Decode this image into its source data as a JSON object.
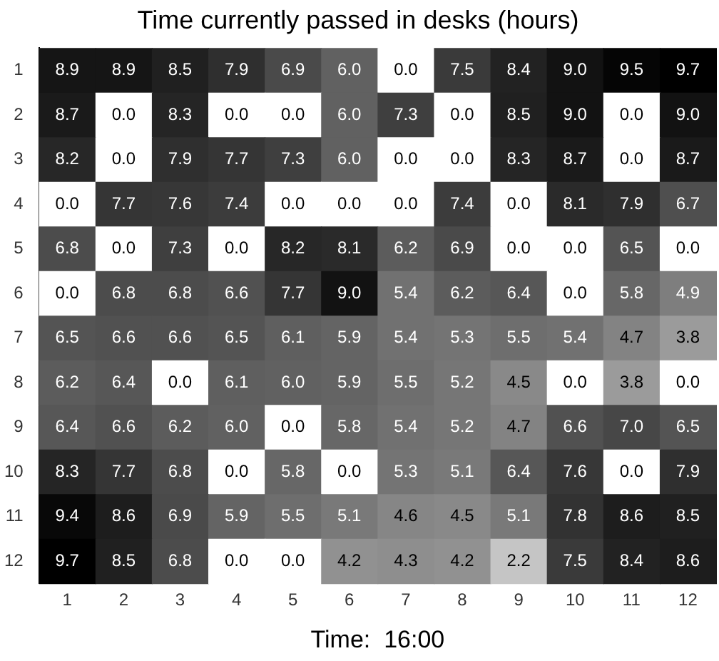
{
  "chart_data": {
    "type": "heatmap",
    "title": "Time currently passed in desks (hours)",
    "xlabel": "Time:  16:00",
    "categories": [
      "1",
      "2",
      "3",
      "4",
      "5",
      "6",
      "7",
      "8",
      "9",
      "10",
      "11",
      "12"
    ],
    "y_categories": [
      "1",
      "2",
      "3",
      "4",
      "5",
      "6",
      "7",
      "8",
      "9",
      "10",
      "11",
      "12"
    ],
    "cells": [
      [
        8.9,
        8.9,
        8.5,
        7.9,
        6.9,
        6.0,
        0.0,
        7.5,
        8.4,
        9.0,
        9.5,
        9.7
      ],
      [
        8.7,
        0.0,
        8.3,
        0.0,
        0.0,
        6.0,
        7.3,
        0.0,
        8.5,
        9.0,
        0.0,
        9.0
      ],
      [
        8.2,
        0.0,
        7.9,
        7.7,
        7.3,
        6.0,
        0.0,
        0.0,
        8.3,
        8.7,
        0.0,
        8.7
      ],
      [
        0.0,
        7.7,
        7.6,
        7.4,
        0.0,
        0.0,
        0.0,
        7.4,
        0.0,
        8.1,
        7.9,
        6.7
      ],
      [
        6.8,
        0.0,
        7.3,
        0.0,
        8.2,
        8.1,
        6.2,
        6.9,
        0.0,
        0.0,
        6.5,
        0.0
      ],
      [
        0.0,
        6.8,
        6.8,
        6.6,
        7.7,
        9.0,
        5.4,
        6.2,
        6.4,
        0.0,
        5.8,
        4.9
      ],
      [
        6.5,
        6.6,
        6.6,
        6.5,
        6.1,
        5.9,
        5.4,
        5.3,
        5.5,
        5.4,
        4.7,
        3.8
      ],
      [
        6.2,
        6.4,
        0.0,
        6.1,
        6.0,
        5.9,
        5.5,
        5.2,
        4.5,
        0.0,
        3.8,
        0.0
      ],
      [
        6.4,
        6.6,
        6.2,
        6.0,
        0.0,
        5.8,
        5.4,
        5.2,
        4.7,
        6.6,
        7.0,
        6.5
      ],
      [
        8.3,
        7.7,
        6.8,
        0.0,
        5.8,
        0.0,
        5.3,
        5.1,
        6.4,
        7.6,
        0.0,
        7.9
      ],
      [
        9.4,
        8.6,
        6.9,
        5.9,
        5.5,
        5.1,
        4.6,
        4.5,
        5.1,
        7.8,
        8.6,
        8.5
      ],
      [
        9.7,
        8.5,
        6.8,
        0.0,
        0.0,
        4.2,
        4.3,
        4.2,
        2.2,
        7.5,
        8.4,
        8.6
      ]
    ],
    "cell_labels": [
      [
        "8.9",
        "8.9",
        "8.5",
        "7.9",
        "6.9",
        "6.0",
        "0.0",
        "7.5",
        "8.4",
        "9.0",
        "9.5",
        "9.7"
      ],
      [
        "8.7",
        "0.0",
        "8.3",
        "0.0",
        "0.0",
        "6.0",
        "7.3",
        "0.0",
        "8.5",
        "9.0",
        "0.0",
        "9.0"
      ],
      [
        "8.2",
        "0.0",
        "7.9",
        "7.7",
        "7.3",
        "6.0",
        "0.0",
        "0.0",
        "8.3",
        "8.7",
        "0.0",
        "8.7"
      ],
      [
        "0.0",
        "7.7",
        "7.6",
        "7.4",
        "0.0",
        "0.0",
        "0.0",
        "7.4",
        "0.0",
        "8.1",
        "7.9",
        "6.7"
      ],
      [
        "6.8",
        "0.0",
        "7.3",
        "0.0",
        "8.2",
        "8.1",
        "6.2",
        "6.9",
        "0.0",
        "0.0",
        "6.5",
        "0.0"
      ],
      [
        "0.0",
        "6.8",
        "6.8",
        "6.6",
        "7.7",
        "9.0",
        "5.4",
        "6.2",
        "6.4",
        "0.0",
        "5.8",
        "4.9"
      ],
      [
        "6.5",
        "6.6",
        "6.6",
        "6.5",
        "6.1",
        "5.9",
        "5.4",
        "5.3",
        "5.5",
        "5.4",
        "4.7",
        "3.8"
      ],
      [
        "6.2",
        "6.4",
        "0.0",
        "6.1",
        "6.0",
        "5.9",
        "5.5",
        "5.2",
        "4.5",
        "0.0",
        "3.8",
        "0.0"
      ],
      [
        "6.4",
        "6.6",
        "6.2",
        "6.0",
        "0.0",
        "5.8",
        "5.4",
        "5.2",
        "4.7",
        "6.6",
        "7.0",
        "6.5"
      ],
      [
        "8.3",
        "7.7",
        "6.8",
        "0.0",
        "5.8",
        "0.0",
        "5.3",
        "5.1",
        "6.4",
        "7.6",
        "0.0",
        "7.9"
      ],
      [
        "9.4",
        "8.6",
        "6.9",
        "5.9",
        "5.5",
        "5.1",
        "4.6",
        "4.5",
        "5.1",
        "7.8",
        "8.6",
        "8.5"
      ],
      [
        "9.7",
        "8.5",
        "6.8",
        "0.0",
        "0.0",
        "4.2",
        "4.3",
        "4.2",
        "2.2",
        "7.5",
        "8.4",
        "8.6"
      ]
    ]
  }
}
